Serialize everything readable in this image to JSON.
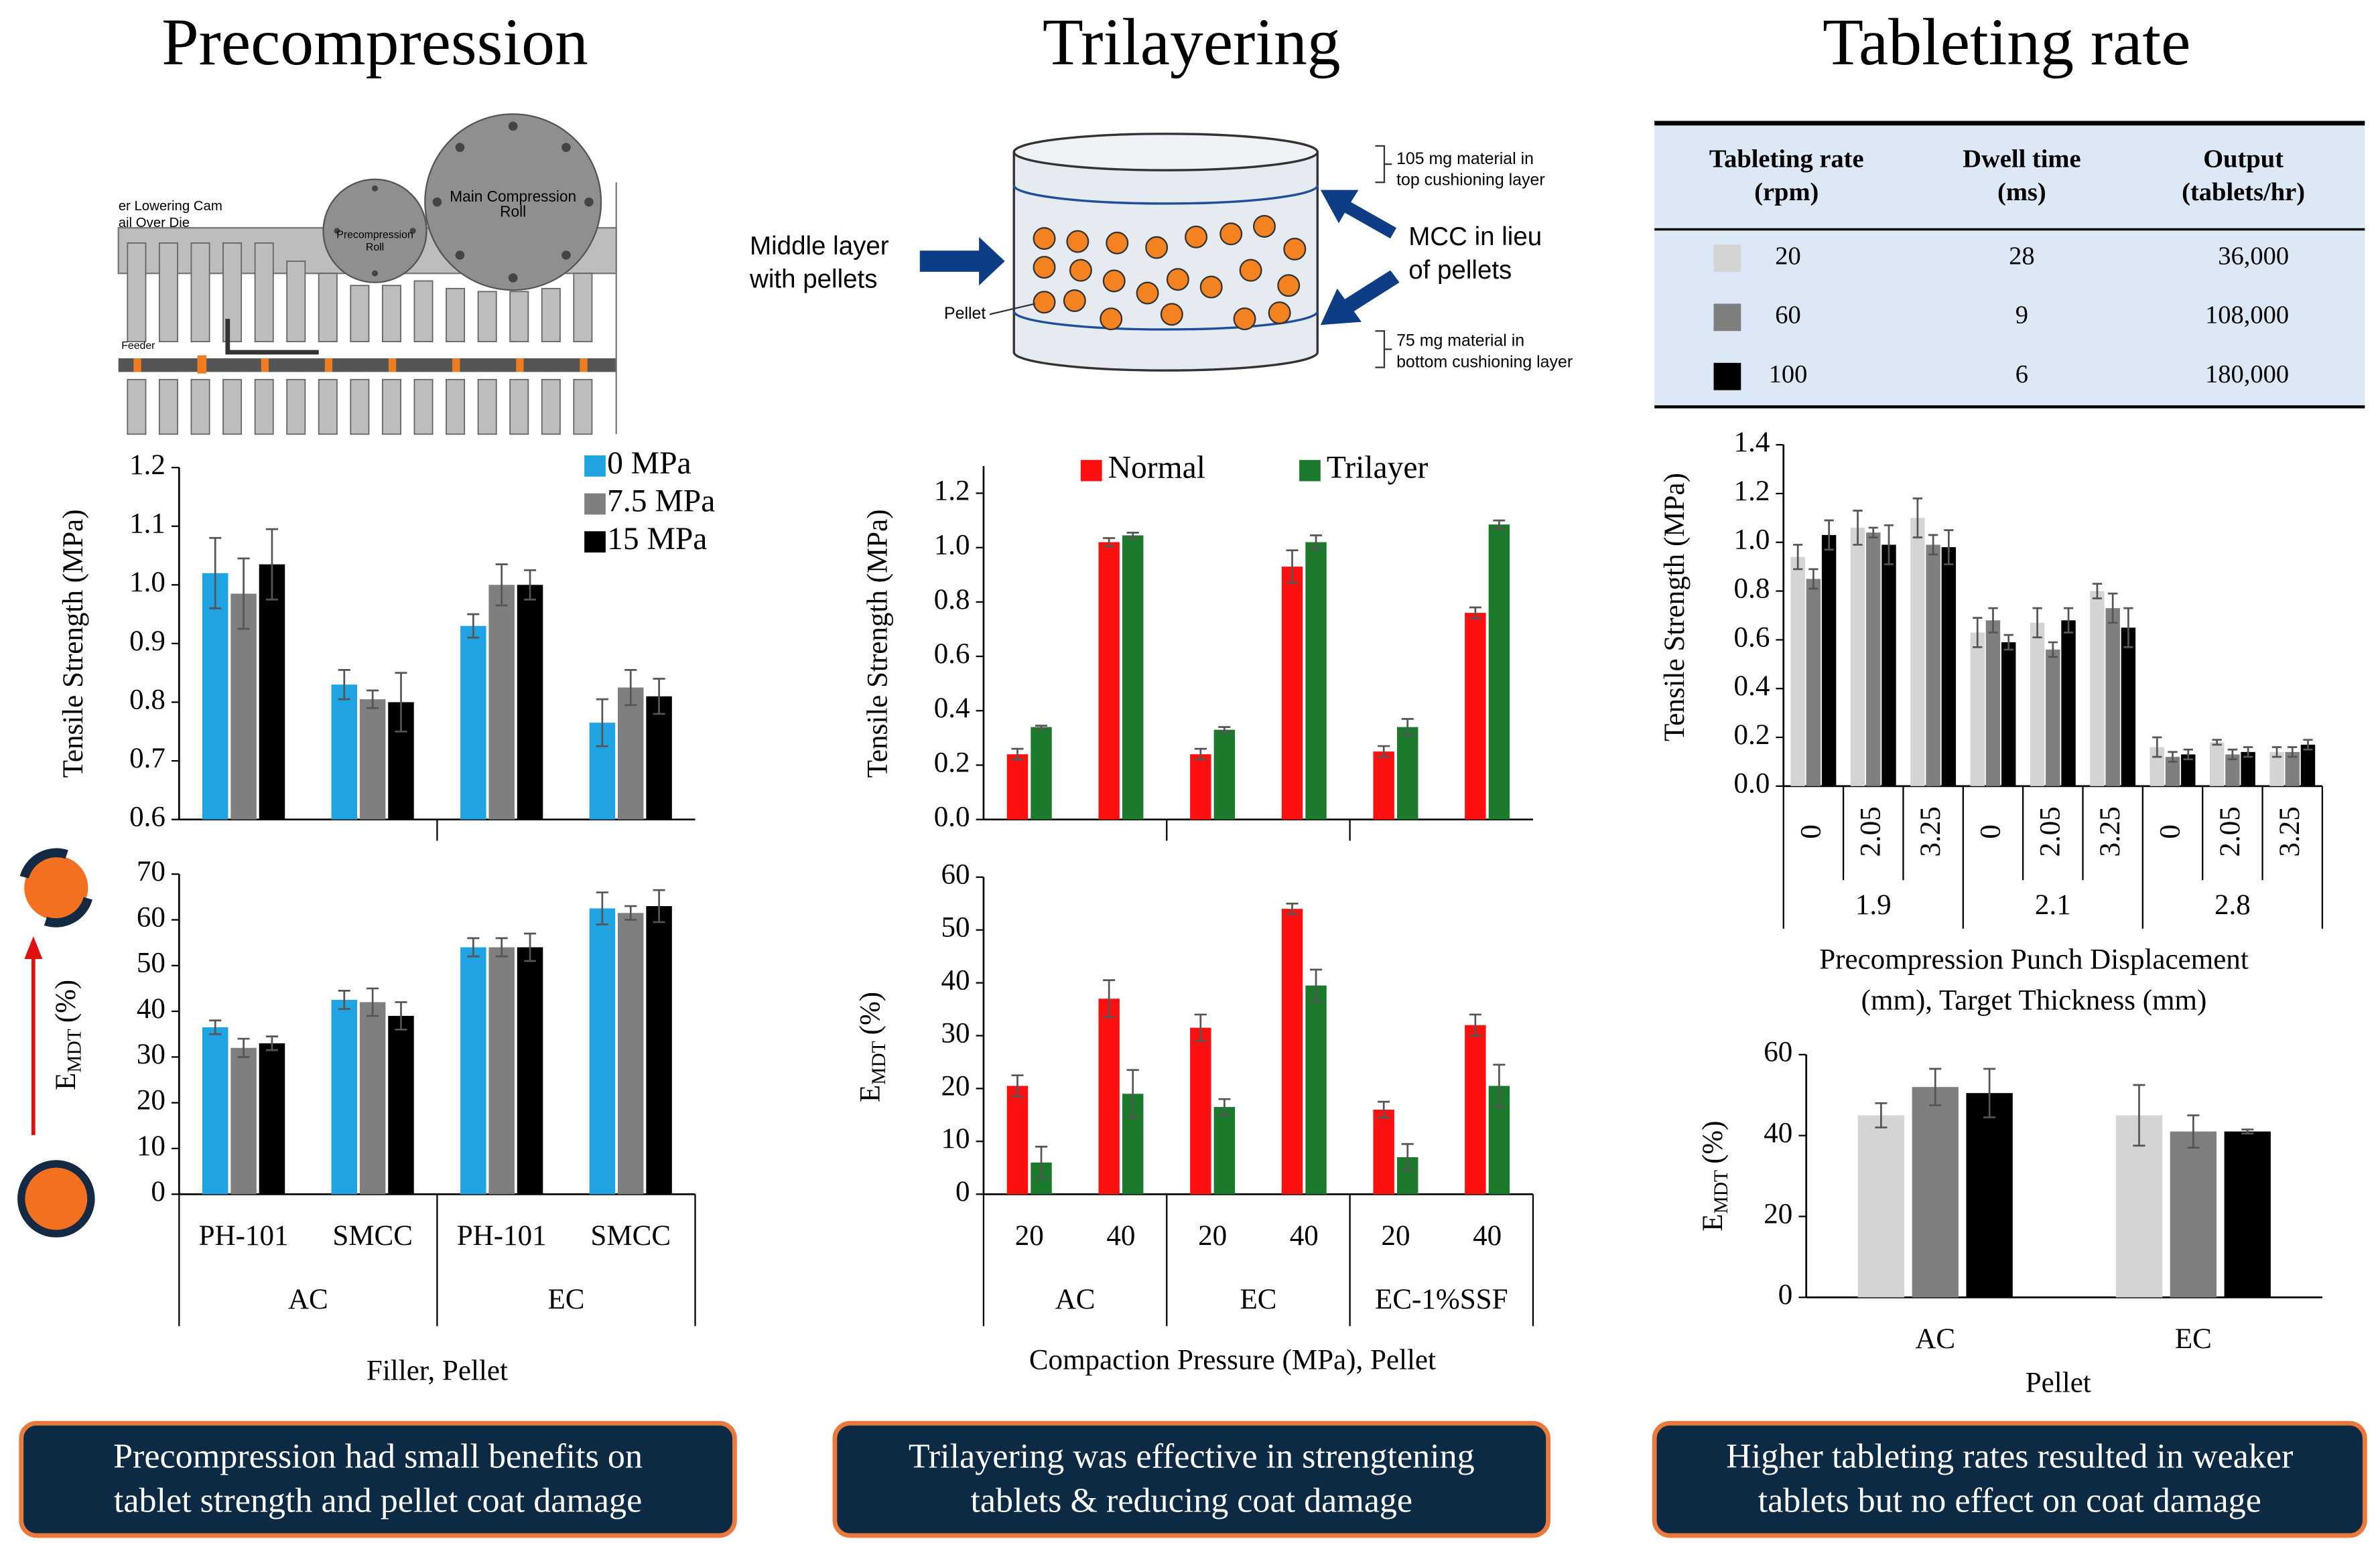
{
  "chart_data": [
    {
      "type": "bar",
      "title": "Precompression",
      "subplots": [
        {
          "ylabel": "Tensile Strength (MPa)",
          "ylim": [
            0.6,
            1.2
          ],
          "yticks": [
            0.6,
            0.7,
            0.8,
            0.9,
            {
              "value": 1,
              "label": "1.0"
            },
            1.1,
            1.2
          ],
          "series": [
            {
              "name": "0 MPa",
              "color": "#1fa3e3",
              "values": [
                1.02,
                0.83,
                0.93,
                0.765
              ],
              "errors": [
                0.06,
                0.025,
                0.02,
                0.04
              ]
            },
            {
              "name": "7.5 MPa",
              "color": "#7f7f7f",
              "values": [
                0.985,
                0.805,
                1.0,
                0.825
              ],
              "errors": [
                0.06,
                0.015,
                0.035,
                0.03
              ]
            },
            {
              "name": "15 MPa",
              "color": "#000000",
              "values": [
                1.035,
                0.8,
                1.0,
                0.81
              ],
              "errors": [
                0.06,
                0.05,
                0.025,
                0.03
              ]
            }
          ]
        },
        {
          "ylabel": {
            "text": "E",
            "sub": "MDT",
            "suffix": "(%)"
          },
          "ylim": [
            0,
            70
          ],
          "yticks": [
            0,
            10,
            20,
            30,
            40,
            50,
            60,
            70
          ],
          "xlabel": "Filler, Pellet",
          "groups": [
            {
              "name": "AC",
              "categories": [
                "PH-101",
                "SMCC"
              ]
            },
            {
              "name": "EC",
              "categories": [
                "PH-101",
                "SMCC"
              ]
            }
          ],
          "series": [
            {
              "color": "#1fa3e3",
              "values": [
                36.5,
                42.5,
                54,
                62.5
              ],
              "errors": [
                1.5,
                2,
                2,
                3.5
              ]
            },
            {
              "color": "#7f7f7f",
              "values": [
                32,
                42,
                54,
                61.5
              ],
              "errors": [
                2,
                3,
                2,
                1.5
              ]
            },
            {
              "color": "#000000",
              "values": [
                33,
                39,
                54,
                63
              ],
              "errors": [
                1.5,
                3,
                3,
                3.5
              ]
            }
          ]
        }
      ]
    },
    {
      "type": "bar",
      "title": "Trilayering",
      "subplots": [
        {
          "ylabel": "Tensile Strength (MPa)",
          "ylim": [
            0,
            1.3
          ],
          "yticks": [
            {
              "value": 0,
              "label": "0.0"
            },
            0.2,
            0.4,
            0.6,
            0.8,
            {
              "value": 1,
              "label": "1.0"
            },
            1.2
          ],
          "series": [
            {
              "name": "Normal",
              "color": "#ff1010",
              "values": [
                0.24,
                1.02,
                0.24,
                0.93,
                0.25,
                0.76
              ],
              "errors": [
                0.02,
                0.015,
                0.02,
                0.06,
                0.02,
                0.02
              ]
            },
            {
              "name": "Trilayer",
              "color": "#1c7a2c",
              "values": [
                0.34,
                1.045,
                0.33,
                1.02,
                0.34,
                1.085
              ],
              "errors": [
                0.005,
                0.01,
                0.01,
                0.025,
                0.03,
                0.015
              ]
            }
          ]
        },
        {
          "ylabel": {
            "text": "E",
            "sub": "MDT",
            "suffix": "(%)"
          },
          "ylim": [
            0,
            60
          ],
          "yticks": [
            0,
            10,
            20,
            30,
            40,
            50,
            60
          ],
          "xlabel": "Compaction Pressure (MPa), Pellet",
          "groups": [
            {
              "name": "AC",
              "categories": [
                "20",
                "40"
              ]
            },
            {
              "name": "EC",
              "categories": [
                "20",
                "40"
              ]
            },
            {
              "name": "EC-1%SSF",
              "categories": [
                "20",
                "40"
              ]
            }
          ],
          "series": [
            {
              "color": "#ff1010",
              "values": [
                20.5,
                37,
                31.5,
                54,
                16,
                32
              ],
              "errors": [
                2,
                3.5,
                2.5,
                1,
                1.5,
                2
              ]
            },
            {
              "color": "#1c7a2c",
              "values": [
                6,
                19,
                16.5,
                39.5,
                7,
                20.5
              ],
              "errors": [
                3,
                4.5,
                1.5,
                3,
                2.5,
                4
              ]
            }
          ]
        }
      ]
    },
    {
      "type": "bar",
      "title": "Tableting rate",
      "subplots": [
        {
          "ylabel": "Tensile Strength (MPa)",
          "ylim": [
            0,
            1.4
          ],
          "yticks": [
            {
              "value": 0,
              "label": "0.0"
            },
            0.2,
            0.4,
            0.6,
            0.8,
            {
              "value": 1,
              "label": "1.0"
            },
            1.2,
            1.4
          ],
          "xlabel": [
            "Precompression Punch Displacement",
            "(mm), Target Thickness (mm)"
          ],
          "groups": [
            {
              "name": "1.9",
              "categories": [
                "0",
                "2.05",
                "3.25"
              ]
            },
            {
              "name": "2.1",
              "categories": [
                "0",
                "2.05",
                "3.25"
              ]
            },
            {
              "name": "2.8",
              "categories": [
                "0",
                "2.05",
                "3.25"
              ]
            }
          ],
          "series": [
            {
              "color": "#d4d4d4",
              "values": [
                0.94,
                1.06,
                1.1,
                0.63,
                0.67,
                0.8,
                0.16,
                0.18,
                0.14
              ],
              "errors": [
                0.05,
                0.07,
                0.08,
                0.06,
                0.06,
                0.03,
                0.04,
                0.01,
                0.02
              ]
            },
            {
              "color": "#7f7f7f",
              "values": [
                0.85,
                1.04,
                0.99,
                0.68,
                0.56,
                0.73,
                0.12,
                0.13,
                0.14
              ],
              "errors": [
                0.04,
                0.02,
                0.04,
                0.05,
                0.03,
                0.06,
                0.02,
                0.02,
                0.02
              ]
            },
            {
              "color": "#000000",
              "values": [
                1.03,
                0.99,
                0.98,
                0.59,
                0.68,
                0.65,
                0.13,
                0.14,
                0.17
              ],
              "errors": [
                0.06,
                0.08,
                0.07,
                0.03,
                0.05,
                0.08,
                0.02,
                0.02,
                0.02
              ]
            }
          ]
        },
        {
          "ylabel": {
            "text": "E",
            "sub": "MDT",
            "suffix": "(%)"
          },
          "ylim": [
            0,
            60
          ],
          "yticks": [
            0,
            20,
            40,
            60
          ],
          "xlabel": "Pellet",
          "categories": [
            "AC",
            "EC"
          ],
          "series": [
            {
              "color": "#d4d4d4",
              "values": [
                45,
                45
              ],
              "errors": [
                3,
                7.5
              ]
            },
            {
              "color": "#7f7f7f",
              "values": [
                52,
                41
              ],
              "errors": [
                4.5,
                4
              ]
            },
            {
              "color": "#000000",
              "values": [
                50.5,
                41
              ],
              "errors": [
                6,
                0.5
              ]
            }
          ]
        }
      ]
    }
  ],
  "table": {
    "header": [
      [
        "Tableting rate",
        "(rpm)"
      ],
      [
        "Dwell time",
        "(ms)"
      ],
      [
        "Output",
        "(tablets/hr)"
      ]
    ],
    "rows": [
      [
        "20",
        "28",
        "36,000"
      ],
      [
        "60",
        "9",
        "108,000"
      ],
      [
        "100",
        "6",
        "180,000"
      ]
    ]
  },
  "press_diagram": {
    "cam": "er Lowering Cam",
    "rail": "ail Over Die",
    "main_roll": [
      "Main Compression",
      "Roll"
    ],
    "pre_roll": [
      "Precompression",
      "Roll"
    ],
    "feeder": "Feeder"
  },
  "trilayer_diagram": {
    "top": [
      "105 mg material in",
      "top cushioning layer"
    ],
    "middle": [
      "Middle layer",
      "with pellets"
    ],
    "mcc": [
      "MCC in lieu",
      "of pellets"
    ],
    "pellet": "Pellet",
    "bottom": [
      "75 mg material in",
      "bottom cushioning layer"
    ]
  },
  "captions": [
    [
      "Precompression had small benefits on",
      "tablet strength and pellet coat damage"
    ],
    [
      "Trilayering was effective in strengtening",
      "tablets & reducing coat damage"
    ],
    [
      "Higher tableting rates resulted in weaker",
      "tablets but no effect on coat damage"
    ]
  ]
}
